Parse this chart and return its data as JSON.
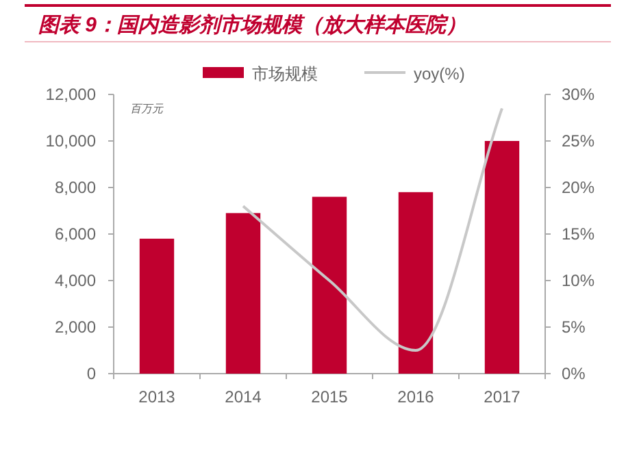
{
  "chart_data": {
    "type": "bar",
    "title": "图表 9：国内造影剂市场规模（放大样本医院）",
    "categories": [
      "2013",
      "2014",
      "2015",
      "2016",
      "2017"
    ],
    "series": [
      {
        "name": "市场规模",
        "color": "#c0002f",
        "values": [
          5800,
          6900,
          7600,
          7800,
          10000
        ]
      },
      {
        "name": "yoy(%)",
        "type": "line",
        "axis": "y2",
        "color": "#c8c8c8",
        "values": [
          null,
          18,
          10,
          2.5,
          28.5
        ]
      }
    ],
    "ylim": [
      0,
      12000
    ],
    "yticks": [
      {
        "value": 0,
        "label": "0"
      },
      {
        "value": 2000,
        "label": "2,000"
      },
      {
        "value": 4000,
        "label": "4,000"
      },
      {
        "value": 6000,
        "label": "6,000"
      },
      {
        "value": 8000,
        "label": "8,000"
      },
      {
        "value": 10000,
        "label": "10,000"
      },
      {
        "value": 12000,
        "label": "12,000"
      }
    ],
    "y2lim": [
      0,
      30
    ],
    "y2ticks": [
      {
        "value": 0,
        "label": "0%"
      },
      {
        "value": 5,
        "label": "5%"
      },
      {
        "value": 10,
        "label": "10%"
      },
      {
        "value": 15,
        "label": "15%"
      },
      {
        "value": 20,
        "label": "20%"
      },
      {
        "value": 25,
        "label": "25%"
      },
      {
        "value": 30,
        "label": "30%"
      }
    ],
    "annotations": [
      "百万元"
    ],
    "legend": "top"
  }
}
